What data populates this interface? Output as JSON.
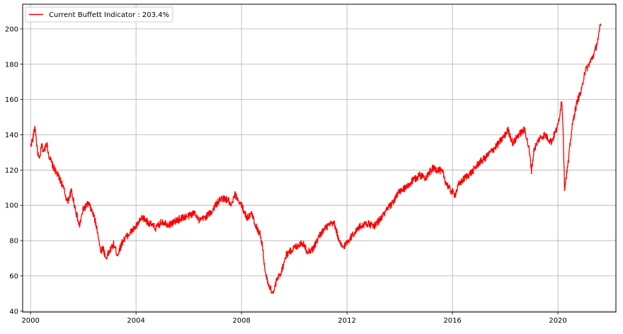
{
  "chart_data": {
    "type": "line",
    "title": "",
    "xlabel": "",
    "ylabel": "",
    "xlim": [
      1999.7,
      2022.2
    ],
    "ylim": [
      39.5,
      214
    ],
    "x_ticks": [
      2000,
      2004,
      2008,
      2012,
      2016,
      2020
    ],
    "x_tick_labels": [
      "2000",
      "2004",
      "2008",
      "2012",
      "2016",
      "2020"
    ],
    "y_ticks": [
      40,
      60,
      80,
      100,
      120,
      140,
      160,
      180,
      200
    ],
    "y_tick_labels": [
      "40",
      "60",
      "80",
      "100",
      "120",
      "140",
      "160",
      "180",
      "200"
    ],
    "grid": true,
    "legend_position": "upper-left",
    "colors": {
      "series": "#ff0000",
      "grid": "#b0b0b0",
      "axes": "#000000",
      "legend_border": "#cccccc"
    },
    "series": [
      {
        "name": "Current Buffett Indicator : 203.4%",
        "x": [
          2000.0,
          2000.08,
          2000.17,
          2000.25,
          2000.33,
          2000.42,
          2000.5,
          2000.6,
          2000.7,
          2000.85,
          2001.0,
          2001.2,
          2001.4,
          2001.55,
          2001.7,
          2001.85,
          2002.0,
          2002.2,
          2002.4,
          2002.55,
          2002.65,
          2002.75,
          2002.85,
          2003.0,
          2003.15,
          2003.3,
          2003.5,
          2003.75,
          2004.0,
          2004.25,
          2004.5,
          2004.75,
          2005.0,
          2005.25,
          2005.5,
          2005.75,
          2006.0,
          2006.25,
          2006.4,
          2006.6,
          2006.85,
          2007.0,
          2007.25,
          2007.5,
          2007.6,
          2007.75,
          2007.85,
          2008.0,
          2008.2,
          2008.4,
          2008.55,
          2008.7,
          2008.8,
          2008.9,
          2009.0,
          2009.1,
          2009.2,
          2009.35,
          2009.5,
          2009.7,
          2010.0,
          2010.3,
          2010.5,
          2010.7,
          2011.0,
          2011.25,
          2011.5,
          2011.6,
          2011.7,
          2011.85,
          2012.0,
          2012.25,
          2012.5,
          2012.75,
          2013.0,
          2013.25,
          2013.5,
          2013.75,
          2014.0,
          2014.25,
          2014.5,
          2014.75,
          2015.0,
          2015.25,
          2015.5,
          2015.65,
          2015.75,
          2015.9,
          2016.1,
          2016.25,
          2016.5,
          2016.75,
          2017.0,
          2017.25,
          2017.5,
          2017.75,
          2018.0,
          2018.1,
          2018.3,
          2018.5,
          2018.75,
          2018.9,
          2019.0,
          2019.1,
          2019.3,
          2019.5,
          2019.75,
          2020.0,
          2020.1,
          2020.15,
          2020.2,
          2020.25,
          2020.3,
          2020.4,
          2020.5,
          2020.6,
          2020.75,
          2020.9,
          2021.0,
          2021.25,
          2021.4,
          2021.55,
          2021.62
        ],
        "y": [
          134,
          137,
          145,
          132,
          125,
          134,
          130,
          136,
          128,
          122,
          118,
          112,
          102,
          108,
          98,
          88,
          98,
          101,
          94,
          85,
          74,
          76,
          70,
          74,
          78,
          72,
          80,
          84,
          88,
          93,
          90,
          87,
          91,
          89,
          91,
          93,
          94,
          96,
          91,
          93,
          96,
          100,
          104,
          103,
          99,
          106,
          104,
          100,
          93,
          95,
          88,
          84,
          76,
          62,
          56,
          53,
          50,
          58,
          62,
          72,
          76,
          79,
          74,
          75,
          84,
          88,
          90,
          86,
          79,
          76,
          79,
          84,
          88,
          90,
          88,
          92,
          97,
          102,
          108,
          110,
          114,
          117,
          116,
          121,
          120,
          118,
          113,
          109,
          106,
          112,
          116,
          119,
          124,
          127,
          131,
          135,
          140,
          143,
          135,
          140,
          143,
          132,
          120,
          132,
          138,
          140,
          136,
          145,
          155,
          160,
          142,
          110,
          115,
          125,
          140,
          150,
          160,
          165,
          175,
          182,
          187,
          196,
          203
        ]
      }
    ]
  }
}
